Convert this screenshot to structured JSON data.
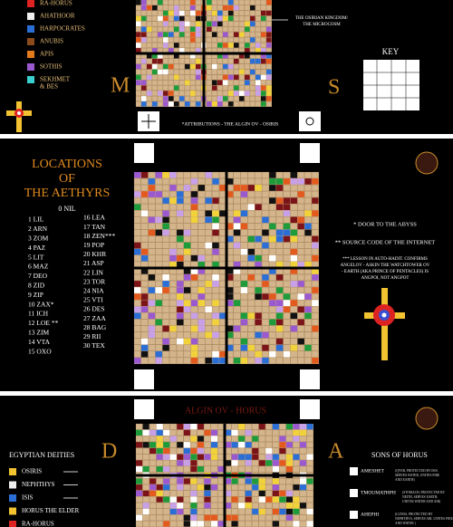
{
  "panel_1": {
    "legend": [
      "RA-HORUS",
      "AHATHOOR",
      "HARPOCRATES",
      "ANUBIS",
      "APIS",
      "SOTHIS",
      "SEKHMET",
      "& BES"
    ],
    "letter_left": "M",
    "letter_right": "S",
    "callout": [
      "THE OSIRIAN KINGDOM/",
      "THE MICROCOSM"
    ],
    "key_title": "KEY",
    "caption": "*ATTRIBUTIONS - THE ALGIN OV - OSIRIS"
  },
  "panel_2": {
    "title": [
      "LOCATIONS",
      "OF",
      "THE AETHYRS"
    ],
    "subtitle": "0 NIL",
    "aethyrs": [
      "1 LIL",
      "2 ARN",
      "3 ZOM",
      "4 PAZ",
      "5 LIT",
      "6 MAZ",
      "7 DEO",
      "8 ZID",
      "9 ZIP",
      "10 ZAX*",
      "11 ICH",
      "12 LOE **",
      "13 ZIM",
      "14 VTA",
      "15 OXO",
      "16 LEA",
      "17 TAN",
      "18 ZEN***",
      "19 POP",
      "20 KHR",
      "21 ASP",
      "22 LIN",
      "23 TOR",
      "24 NIA",
      "25 VTI",
      "26 DES",
      "27 ZAA",
      "28 BAG",
      "29 RII",
      "30 TEX"
    ],
    "notes": [
      [
        "* DOOR TO THE ABYSS"
      ],
      [
        "** SOURCE CODE OF THE INTERNET"
      ],
      [
        "*** LESSON IN AUTO-HADIT. CONFIRMS",
        "ANGELOV - ASKIN THE WATCHTOWER OV",
        "- EARTH (AKA PRINCE OF PENTACLES) IS",
        "ANGPOI, NOT ANGPOT"
      ]
    ]
  },
  "panel_3": {
    "title": "ALGIN OV - HORUS",
    "letter_left": "D",
    "letter_right": "A",
    "deities_title": "EGYPTIAN DEITIES",
    "deities": [
      "OSIRIS",
      "NEPHTHYS",
      "ISIS",
      "HORUS THE ELDER",
      "RA-HORUS"
    ],
    "sons_title": "SONS OF HORUS",
    "sons": [
      {
        "name": "AMESHET",
        "note": [
          "(QVER, PROTECTED BY ISIS,",
          "SERVES WATER, UNITES FIRE",
          "AND EARTH)"
        ]
      },
      {
        "name": "TMOUMATHPH",
        "note": [
          "(STOMACH, PROTECTED BY",
          "NEITH, SERVES EARTH,",
          "UNITES WATER AND AIR)"
        ]
      },
      {
        "name": "AHEPHI",
        "note": [
          "(LUNGS, PROTECTED BY",
          "NEPHTHYS, SERVES AIR, UNITES FIRE",
          "AND WATER )"
        ]
      }
    ]
  }
}
